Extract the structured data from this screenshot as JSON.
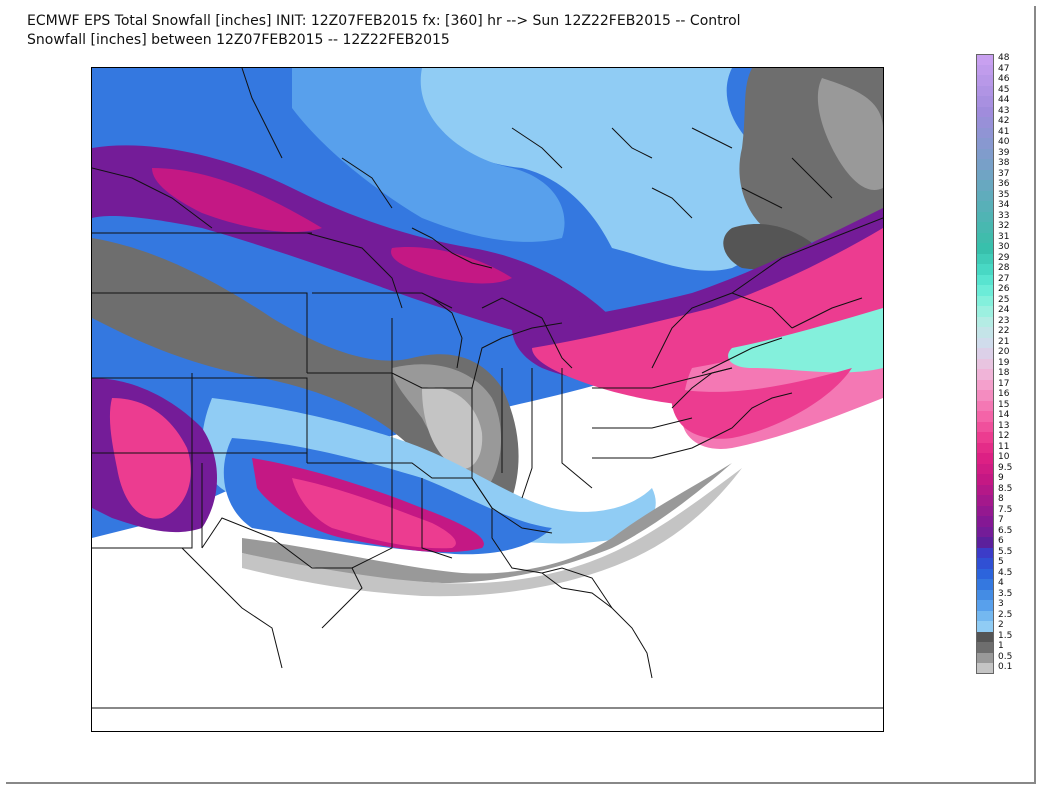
{
  "title": {
    "line1": "ECMWF EPS Total Snowfall [inches] INIT: 12Z07FEB2015 fx: [360] hr --> Sun 12Z22FEB2015 -- Control",
    "line2": "Snowfall [inches] between 12Z07FEB2015 -- 12Z22FEB2015"
  },
  "legend": {
    "unit": "inches",
    "entries": [
      {
        "label": "48",
        "color": "#c8a0f0"
      },
      {
        "label": "47",
        "color": "#c09cec"
      },
      {
        "label": "46",
        "color": "#b898e8"
      },
      {
        "label": "45",
        "color": "#b094e4"
      },
      {
        "label": "44",
        "color": "#a890e0"
      },
      {
        "label": "43",
        "color": "#a08cdc"
      },
      {
        "label": "42",
        "color": "#9890d8"
      },
      {
        "label": "41",
        "color": "#9094d4"
      },
      {
        "label": "40",
        "color": "#8898d0"
      },
      {
        "label": "39",
        "color": "#809ccc"
      },
      {
        "label": "38",
        "color": "#78a0c8"
      },
      {
        "label": "37",
        "color": "#70a4c4"
      },
      {
        "label": "36",
        "color": "#68a8c0"
      },
      {
        "label": "35",
        "color": "#60acbc"
      },
      {
        "label": "34",
        "color": "#58b0b8"
      },
      {
        "label": "33",
        "color": "#50b4b4"
      },
      {
        "label": "32",
        "color": "#48b8b0"
      },
      {
        "label": "31",
        "color": "#40bcac"
      },
      {
        "label": "30",
        "color": "#38c0ac"
      },
      {
        "label": "29",
        "color": "#40ccb8"
      },
      {
        "label": "28",
        "color": "#48d8c4"
      },
      {
        "label": "27",
        "color": "#58e4d0"
      },
      {
        "label": "26",
        "color": "#6cecd8"
      },
      {
        "label": "25",
        "color": "#84f0dc"
      },
      {
        "label": "24",
        "color": "#9cf0e0"
      },
      {
        "label": "23",
        "color": "#b4ece4"
      },
      {
        "label": "22",
        "color": "#c4e4e8"
      },
      {
        "label": "21",
        "color": "#d0dcec"
      },
      {
        "label": "20",
        "color": "#dcd0e8"
      },
      {
        "label": "19",
        "color": "#e8c4e0"
      },
      {
        "label": "18",
        "color": "#f0b4d8"
      },
      {
        "label": "17",
        "color": "#f4a0cc"
      },
      {
        "label": "16",
        "color": "#f48cc0"
      },
      {
        "label": "15",
        "color": "#f478b4"
      },
      {
        "label": "14",
        "color": "#f464a8"
      },
      {
        "label": "13",
        "color": "#f0509c"
      },
      {
        "label": "12",
        "color": "#ec3c90"
      },
      {
        "label": "11",
        "color": "#e42c88"
      },
      {
        "label": "10",
        "color": "#dc2084"
      },
      {
        "label": "9.5",
        "color": "#d01c84"
      },
      {
        "label": "9",
        "color": "#c41884"
      },
      {
        "label": "8.5",
        "color": "#b41888"
      },
      {
        "label": "8",
        "color": "#a4188c"
      },
      {
        "label": "7.5",
        "color": "#941890"
      },
      {
        "label": "7",
        "color": "#841894"
      },
      {
        "label": "6.5",
        "color": "#741c98"
      },
      {
        "label": "6",
        "color": "#5c209c"
      },
      {
        "label": "5.5",
        "color": "#3c3cc8"
      },
      {
        "label": "5",
        "color": "#3050d4"
      },
      {
        "label": "4.5",
        "color": "#2c64dc"
      },
      {
        "label": "4",
        "color": "#3478e0"
      },
      {
        "label": "3.5",
        "color": "#448ce4"
      },
      {
        "label": "3",
        "color": "#58a0ec"
      },
      {
        "label": "2.5",
        "color": "#74b8f0"
      },
      {
        "label": "2",
        "color": "#90ccf4"
      },
      {
        "label": "1.5",
        "color": "#555555"
      },
      {
        "label": "1",
        "color": "#6e6e6e"
      },
      {
        "label": "0.5",
        "color": "#999999"
      },
      {
        "label": "0.1",
        "color": "#c4c4c4"
      }
    ]
  },
  "map": {
    "projection": "Lambert conformal",
    "region": "Eastern and Central United States, Southern Canada",
    "colors": {
      "trace_gray": "#c4c4c4",
      "light_gray": "#999999",
      "gray": "#6e6e6e",
      "dark_gray": "#555555",
      "light_blue": "#90ccf4",
      "sky_blue": "#58a0ec",
      "blue": "#3478e0",
      "deep_blue": "#3050d4",
      "purple": "#741c98",
      "magenta": "#c41884",
      "pink": "#ec3c90",
      "light_pink": "#f478b4",
      "teal": "#84f0dc",
      "outline": "#111111"
    }
  }
}
